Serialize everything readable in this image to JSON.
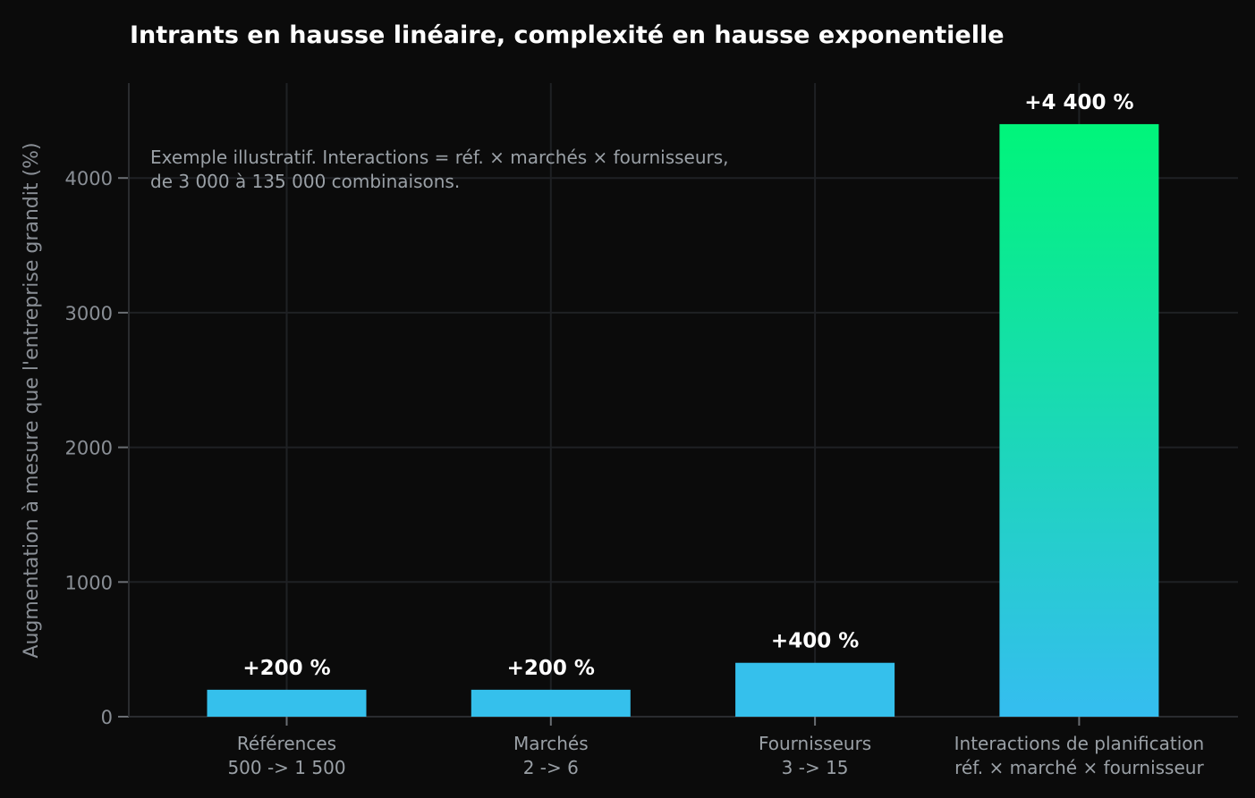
{
  "chart_data": {
    "type": "bar",
    "title": "Intrants en hausse linéaire, complexité en hausse exponentielle",
    "xlabel": "",
    "ylabel": "Augmentation à mesure que l'entreprise grandit (%)",
    "ylim": [
      0,
      4700
    ],
    "yticks": [
      0,
      1000,
      2000,
      3000,
      4000
    ],
    "grid": true,
    "categories": [
      {
        "name": "Références",
        "detail": "500 -> 1 500"
      },
      {
        "name": "Marchés",
        "detail": "2 -> 6"
      },
      {
        "name": "Fournisseurs",
        "detail": "3 -> 15"
      },
      {
        "name": "Interactions de planification",
        "detail": "réf. × marché × fournisseur"
      }
    ],
    "values": [
      200,
      200,
      400,
      4400
    ],
    "value_labels": [
      "+200 %",
      "+200 %",
      "+400 %",
      "+4 400 %"
    ],
    "annotation": [
      "Exemple illustratif. Interactions = réf. × marchés × fournisseurs,",
      "de 3 000 à 135 000 combinaisons."
    ],
    "colors": {
      "background": "#0b0b0b",
      "bar": "#35c0ec",
      "highlight_top": "#00f57a",
      "highlight_bottom": "#35bdf0",
      "grid": "#1f2124",
      "axis": "#2a2c2f"
    }
  }
}
